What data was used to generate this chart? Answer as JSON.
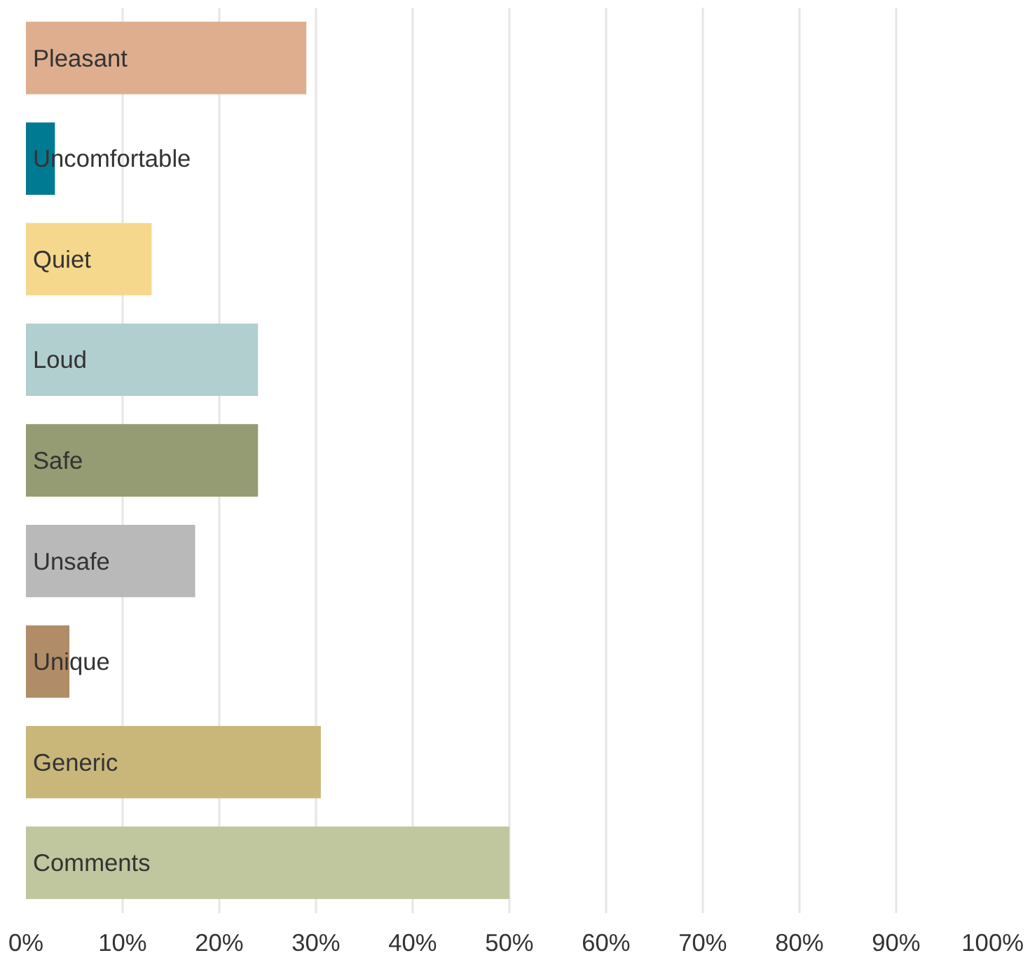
{
  "chart_data": {
    "type": "bar",
    "orientation": "horizontal",
    "categories": [
      "Pleasant",
      "Uncomfortable",
      "Quiet",
      "Loud",
      "Safe",
      "Unsafe",
      "Unique",
      "Generic",
      "Comments"
    ],
    "values": [
      29,
      3,
      13,
      24,
      24,
      17.5,
      4.5,
      30.5,
      50
    ],
    "colors": [
      "#deae8e",
      "#007a93",
      "#f5d88c",
      "#b2cfcf",
      "#959b72",
      "#b9b9b9",
      "#b08c67",
      "#c9b77a",
      "#c0c79e"
    ],
    "xlim": [
      0,
      100
    ],
    "xticks": [
      {
        "value": 0,
        "label": "0%"
      },
      {
        "value": 10,
        "label": "10%"
      },
      {
        "value": 20,
        "label": "20%"
      },
      {
        "value": 30,
        "label": "30%"
      },
      {
        "value": 40,
        "label": "40%"
      },
      {
        "value": 50,
        "label": "50%"
      },
      {
        "value": 60,
        "label": "60%"
      },
      {
        "value": 70,
        "label": "70%"
      },
      {
        "value": 80,
        "label": "80%"
      },
      {
        "value": 90,
        "label": "90%"
      },
      {
        "value": 100,
        "label": "100%"
      }
    ],
    "grid": "x",
    "tick_labels": "x"
  }
}
